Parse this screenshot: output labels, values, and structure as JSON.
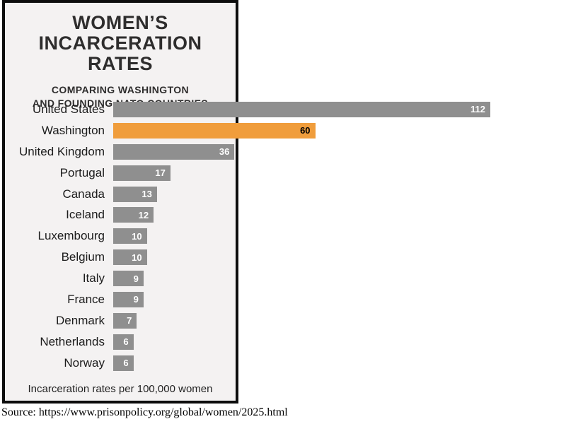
{
  "panel": {
    "title_line1": "WOMEN’S",
    "title_line2": "INCARCERATION RATES",
    "subtitle_line1": "COMPARING WASHINGTON",
    "subtitle_line2": "AND FOUNDING NATO COUNTRIES",
    "footnote": "Incarceration rates per 100,000 women"
  },
  "source": "Source: https://www.prisonpolicy.org/global/women/2025.html",
  "colors": {
    "bar": "#8f8f8f",
    "highlight": "#f09d3c",
    "panel_bg": "#f4f2f2",
    "frame": "#0d0d0d",
    "value_on_bar": "#ffffff",
    "value_on_highlight": "#000000"
  },
  "chart_data": {
    "type": "bar",
    "orientation": "horizontal",
    "title": "WOMEN'S INCARCERATION RATES",
    "subtitle": "COMPARING WASHINGTON AND FOUNDING NATO COUNTRIES",
    "xlabel": "Incarceration rates per 100,000 women",
    "categories": [
      "United States",
      "Washington",
      "United Kingdom",
      "Portugal",
      "Canada",
      "Iceland",
      "Luxembourg",
      "Belgium",
      "Italy",
      "France",
      "Denmark",
      "Netherlands",
      "Norway"
    ],
    "values": [
      112,
      60,
      36,
      17,
      13,
      12,
      10,
      10,
      9,
      9,
      7,
      6,
      6
    ],
    "highlight_category": "Washington",
    "value_labels": "inside-end",
    "xlim": [
      0,
      112
    ],
    "grid": false,
    "legend": false
  }
}
